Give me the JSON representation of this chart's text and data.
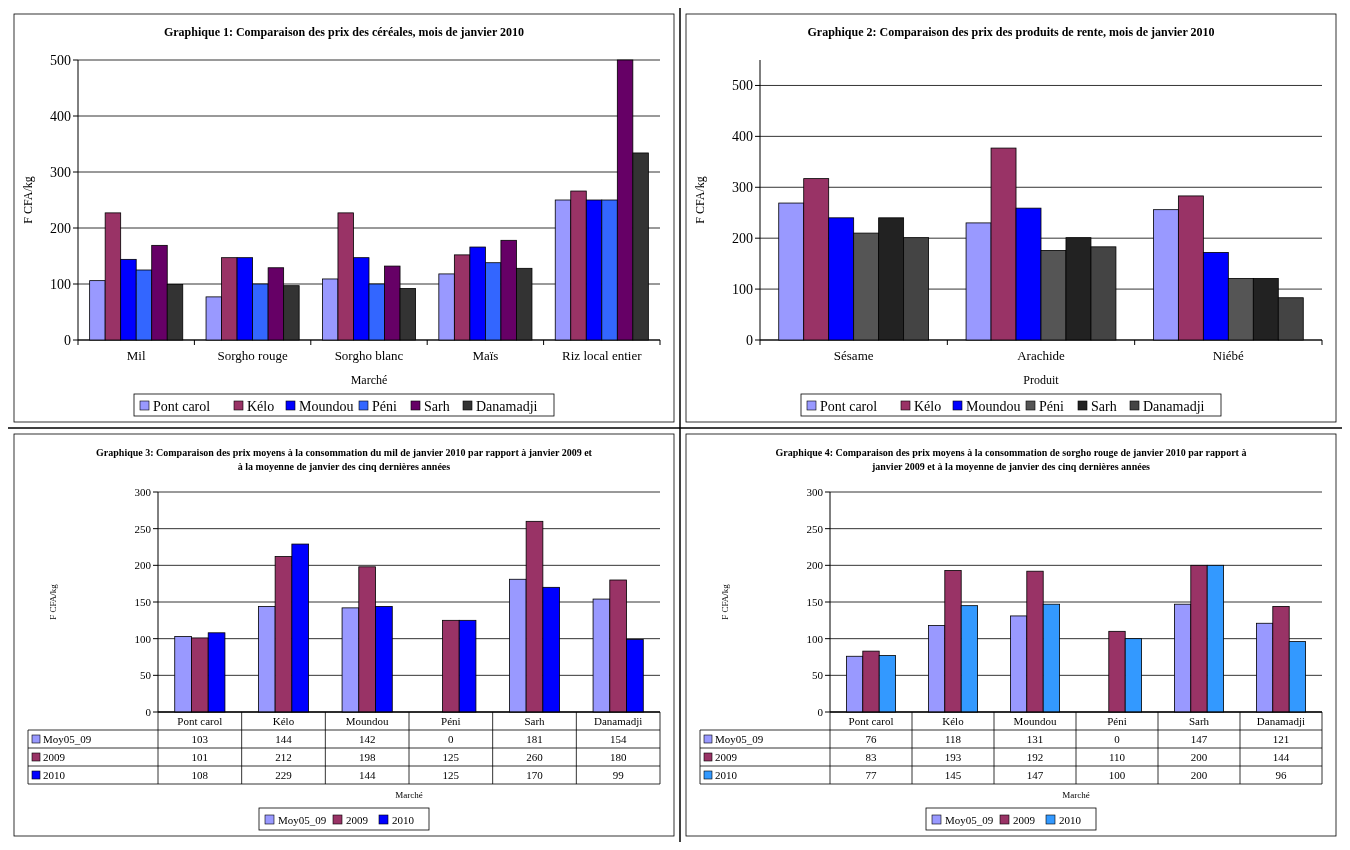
{
  "chart_data": [
    {
      "type": "bar",
      "title": "Graphique 1: Comparaison des prix des céréales, mois de janvier 2010",
      "xlabel": "Marché",
      "ylabel": "F CFA/kg",
      "categories": [
        "Mil",
        "Sorgho rouge",
        "Sorgho blanc",
        "Maïs",
        "Riz local entier"
      ],
      "ylim": [
        0,
        500
      ],
      "yticks": [
        0,
        100,
        200,
        300,
        400,
        500
      ],
      "grid": "y",
      "legend": "bottom",
      "series": [
        {
          "name": "Pont carol",
          "color": "#9999ff",
          "values": [
            106,
            77,
            109,
            118,
            250
          ]
        },
        {
          "name": "Kélo",
          "color": "#993366",
          "values": [
            227,
            147,
            227,
            152,
            266
          ]
        },
        {
          "name": "Moundou",
          "color": "#0000ff",
          "values": [
            144,
            147,
            147,
            166,
            250
          ]
        },
        {
          "name": "Péni",
          "color": "#3366ff",
          "values": [
            125,
            100,
            100,
            138,
            250
          ]
        },
        {
          "name": "Sarh",
          "color": "#660066",
          "values": [
            169,
            129,
            132,
            178,
            500
          ]
        },
        {
          "name": "Danamadji",
          "color": "#333333",
          "values": [
            99,
            97,
            92,
            128,
            334
          ]
        }
      ]
    },
    {
      "type": "bar",
      "title": "Graphique 2: Comparaison des prix des produits de rente, mois de janvier 2010",
      "xlabel": "Produit",
      "ylabel": "F CFA/kg",
      "categories": [
        "Sésame",
        "Arachide",
        "Niébé"
      ],
      "ylim": [
        0,
        550
      ],
      "yticks": [
        0,
        100,
        200,
        300,
        400,
        500
      ],
      "grid": "y",
      "legend": "bottom",
      "series": [
        {
          "name": "Pont carol",
          "color": "#9999ff",
          "values": [
            269,
            230,
            256
          ]
        },
        {
          "name": "Kélo",
          "color": "#993366",
          "values": [
            317,
            377,
            283
          ]
        },
        {
          "name": "Moundou",
          "color": "#0000ff",
          "values": [
            240,
            259,
            172
          ]
        },
        {
          "name": "Péni",
          "color": "#555555",
          "values": [
            210,
            176,
            121
          ]
        },
        {
          "name": "Sarh",
          "color": "#222222",
          "values": [
            240,
            201,
            121
          ]
        },
        {
          "name": "Danamadji",
          "color": "#444444",
          "values": [
            201,
            183,
            83
          ]
        }
      ]
    },
    {
      "type": "bar",
      "title": "Graphique 3: Comparaison des prix moyens à la consommation du mil de janvier 2010 par rapport à janvier 2009 et à la moyenne de janvier des cinq dernières années",
      "xlabel": "Marché",
      "ylabel": "F CFA/kg",
      "categories": [
        "Pont carol",
        "Kélo",
        "Moundou",
        "Péni",
        "Sarh",
        "Danamadji"
      ],
      "ylim": [
        0,
        300
      ],
      "yticks": [
        0,
        50,
        100,
        150,
        200,
        250,
        300
      ],
      "grid": "y",
      "legend": "bottom",
      "data_labels": true,
      "series": [
        {
          "name": "Moy05_09",
          "color": "#9999ff",
          "values": [
            103,
            144,
            142,
            0,
            181,
            154
          ]
        },
        {
          "name": "2009",
          "color": "#993366",
          "values": [
            101,
            212,
            198,
            125,
            260,
            180
          ]
        },
        {
          "name": "2010",
          "color": "#0000ff",
          "values": [
            108,
            229,
            144,
            125,
            170,
            99
          ]
        }
      ]
    },
    {
      "type": "bar",
      "title": "Graphique 4: Comparaison des prix moyens à la consommation de sorgho rouge de janvier 2010 par rapport à janvier 2009 et à la moyenne de janvier des cinq dernières années",
      "xlabel": "Marché",
      "ylabel": "F CFA/kg",
      "categories": [
        "Pont carol",
        "Kélo",
        "Moundou",
        "Péni",
        "Sarh",
        "Danamadji"
      ],
      "ylim": [
        0,
        300
      ],
      "yticks": [
        0,
        50,
        100,
        150,
        200,
        250,
        300
      ],
      "grid": "y",
      "legend": "bottom",
      "data_labels": true,
      "series": [
        {
          "name": "Moy05_09",
          "color": "#9999ff",
          "values": [
            76,
            118,
            131,
            0,
            147,
            121
          ]
        },
        {
          "name": "2009",
          "color": "#993366",
          "values": [
            83,
            193,
            192,
            110,
            200,
            144
          ]
        },
        {
          "name": "2010",
          "color": "#3399ff",
          "values": [
            77,
            145,
            147,
            100,
            200,
            96
          ]
        }
      ]
    }
  ]
}
